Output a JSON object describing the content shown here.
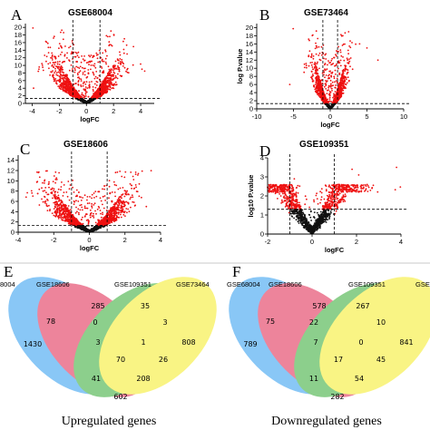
{
  "chart_data": [
    {
      "type": "scatter",
      "panel": "A",
      "title": "GSE68004",
      "xlabel": "logFC",
      "ylabel": "",
      "xlim": [
        -4.5,
        5
      ],
      "ylim": [
        0,
        21
      ],
      "xticks": [
        -4,
        -2,
        0,
        2,
        4
      ],
      "yticks": [
        0,
        2,
        4,
        6,
        8,
        10,
        12,
        14,
        16,
        18,
        20
      ],
      "fc_cutoffs": [
        -1,
        1
      ],
      "p_cutoff": 1.3,
      "spread": 3.0,
      "peak_y": 20,
      "n_points": 2600,
      "outliers": [
        [
          2.5,
          11
        ],
        [
          3.0,
          13
        ],
        [
          4.1,
          9
        ],
        [
          4.3,
          8.5
        ],
        [
          2.8,
          17
        ],
        [
          -3.5,
          9
        ],
        [
          -3.9,
          4
        ]
      ],
      "colors": {
        "sig": "#ee1111",
        "ns": "#111111"
      }
    },
    {
      "type": "scatter",
      "panel": "B",
      "title": "GSE73464",
      "xlabel": "logFC",
      "ylabel": "log P.value",
      "xlim": [
        -10,
        10
      ],
      "ylim": [
        0,
        21
      ],
      "xticks": [
        -10,
        -5,
        0,
        5,
        10
      ],
      "yticks": [
        0,
        2,
        4,
        6,
        8,
        10,
        12,
        14,
        16,
        18,
        20
      ],
      "fc_cutoffs": [
        -1,
        1
      ],
      "p_cutoff": 1.3,
      "spread": 3.2,
      "peak_y": 20,
      "n_points": 2000,
      "outliers": [
        [
          2.5,
          19
        ],
        [
          4.0,
          16
        ],
        [
          5.0,
          15
        ],
        [
          6.5,
          12
        ],
        [
          -3.5,
          11
        ],
        [
          -5.5,
          6
        ]
      ],
      "colors": {
        "sig": "#ee1111",
        "ns": "#111111"
      }
    },
    {
      "type": "scatter",
      "panel": "C",
      "title": "GSE18606",
      "xlabel": "logFC",
      "ylabel": "",
      "xlim": [
        -4,
        4
      ],
      "ylim": [
        0,
        15
      ],
      "xticks": [
        -4,
        -2,
        0,
        2,
        4
      ],
      "yticks": [
        0,
        2,
        4,
        6,
        8,
        10,
        12,
        14
      ],
      "fc_cutoffs": [
        -1,
        1
      ],
      "p_cutoff": 1.3,
      "spread": 2.4,
      "peak_y": 12,
      "n_points": 2200,
      "outliers": [
        [
          -2.6,
          8
        ],
        [
          2.8,
          7
        ],
        [
          3.2,
          5
        ]
      ],
      "colors": {
        "sig": "#ee1111",
        "ns": "#111111"
      }
    },
    {
      "type": "scatter",
      "panel": "D",
      "title": "GSE109351",
      "xlabel": "logFC",
      "ylabel": "log10 P.value",
      "xlim": [
        -2,
        4
      ],
      "ylim": [
        0,
        4
      ],
      "xticks": [
        -2,
        0,
        2,
        4
      ],
      "yticks": [
        0,
        1,
        2,
        3,
        4
      ],
      "fc_cutoffs": [
        -1,
        1
      ],
      "p_cutoff": 1.3,
      "spread": 1.8,
      "peak_y": 2.6,
      "n_points": 1500,
      "outliers": [
        [
          3.8,
          3.5
        ],
        [
          2.1,
          3.1
        ],
        [
          1.8,
          3.4
        ],
        [
          -0.8,
          2.9
        ],
        [
          2.7,
          2.4
        ]
      ],
      "colors": {
        "sig": "#ee1111",
        "ns": "#111111"
      }
    },
    {
      "type": "venn",
      "panel": "E",
      "title": "Upregulated genes",
      "sets": [
        "8004",
        "GSE18606",
        "GSE109351",
        "GSE73464"
      ],
      "counts": [
        "1430",
        "78",
        "285",
        "35",
        "0",
        "3",
        "808",
        "3",
        "1",
        "70",
        "26",
        "41",
        "208",
        "602"
      ]
    },
    {
      "type": "venn",
      "panel": "F",
      "title": "Downregulated genes",
      "sets": [
        "GSE68004",
        "GSE18606",
        "GSE109351",
        "GSE"
      ],
      "counts": [
        "789",
        "75",
        "578",
        "267",
        "22",
        "10",
        "841",
        "7",
        "0",
        "17",
        "45",
        "11",
        "54",
        "282"
      ]
    }
  ]
}
